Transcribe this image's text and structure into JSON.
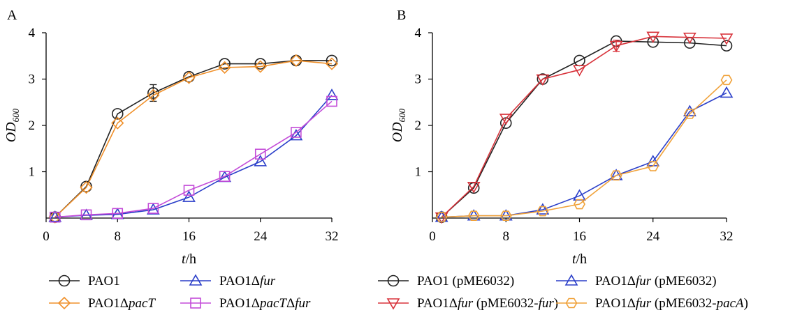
{
  "chart_data": [
    {
      "panel": "A",
      "type": "line",
      "xlabel_italic": "t",
      "xlabel_unit": "/h",
      "ylabel_main": "OD",
      "ylabel_sub": "600",
      "xticks": [
        "0",
        "8",
        "16",
        "24",
        "32"
      ],
      "yticks": [
        "1",
        "2",
        "3",
        "4"
      ],
      "xlim": [
        0,
        32
      ],
      "ylim": [
        0,
        4
      ],
      "grid": false,
      "legend_position": "bottom",
      "x": [
        1,
        4.5,
        8,
        12,
        16,
        20,
        24,
        28,
        32
      ],
      "series": [
        {
          "name_parts": [
            {
              "t": "PAO1",
              "i": false
            }
          ],
          "color": "#222222",
          "marker": "circle",
          "values": [
            0.02,
            0.68,
            2.25,
            2.7,
            3.05,
            3.33,
            3.33,
            3.4,
            3.4
          ],
          "error": [
            0,
            0,
            0,
            0.18,
            0,
            0,
            0,
            0,
            0
          ]
        },
        {
          "name_parts": [
            {
              "t": "PAO1Δ",
              "i": false
            },
            {
              "t": "pacT",
              "i": true
            }
          ],
          "color": "#f0902a",
          "marker": "diamond",
          "values": [
            0.02,
            0.66,
            2.05,
            2.65,
            3.03,
            3.25,
            3.27,
            3.4,
            3.33
          ],
          "error": [
            0,
            0,
            0,
            0,
            0,
            0,
            0,
            0,
            0
          ]
        },
        {
          "name_parts": [
            {
              "t": "PAO1Δ",
              "i": false
            },
            {
              "t": "fur",
              "i": true
            }
          ],
          "color": "#2b3fc9",
          "marker": "triangle-up",
          "values": [
            0.02,
            0.06,
            0.08,
            0.18,
            0.45,
            0.88,
            1.22,
            1.78,
            2.65
          ],
          "error": [
            0,
            0,
            0,
            0,
            0,
            0,
            0,
            0,
            0
          ]
        },
        {
          "name_parts": [
            {
              "t": "PAO1Δ",
              "i": false
            },
            {
              "t": "pacT",
              "i": true
            },
            {
              "t": "Δ",
              "i": false
            },
            {
              "t": "fur",
              "i": true
            }
          ],
          "color": "#c34bd8",
          "marker": "square",
          "values": [
            0.02,
            0.07,
            0.1,
            0.21,
            0.6,
            0.9,
            1.38,
            1.85,
            2.52
          ],
          "error": [
            0,
            0,
            0,
            0,
            0,
            0,
            0,
            0,
            0
          ]
        }
      ]
    },
    {
      "panel": "B",
      "type": "line",
      "xlabel_italic": "t",
      "xlabel_unit": "/h",
      "ylabel_main": "OD",
      "ylabel_sub": "600",
      "xticks": [
        "0",
        "8",
        "16",
        "24",
        "32"
      ],
      "yticks": [
        "1",
        "2",
        "3",
        "4"
      ],
      "xlim": [
        0,
        32
      ],
      "ylim": [
        0,
        4
      ],
      "grid": false,
      "legend_position": "bottom",
      "x": [
        1,
        4.5,
        8,
        12,
        16,
        20,
        24,
        28,
        32
      ],
      "series": [
        {
          "name_parts": [
            {
              "t": "PAO1 (pME6032)",
              "i": false
            }
          ],
          "color": "#222222",
          "marker": "circle",
          "values": [
            0.02,
            0.65,
            2.05,
            3.0,
            3.4,
            3.82,
            3.8,
            3.78,
            3.72
          ],
          "error": [
            0,
            0,
            0,
            0,
            0,
            0,
            0,
            0,
            0
          ]
        },
        {
          "name_parts": [
            {
              "t": "PAO1Δ",
              "i": false
            },
            {
              "t": "fur",
              "i": true
            },
            {
              "t": " (pME6032-",
              "i": false
            },
            {
              "t": "fur",
              "i": true
            },
            {
              "t": ")",
              "i": false
            }
          ],
          "color": "#d8333b",
          "marker": "triangle-down",
          "values": [
            0.02,
            0.68,
            2.15,
            3.0,
            3.2,
            3.72,
            3.92,
            3.9,
            3.88
          ],
          "error": [
            0,
            0,
            0,
            0,
            0,
            0.12,
            0,
            0,
            0
          ]
        },
        {
          "name_parts": [
            {
              "t": "PAO1Δ",
              "i": false
            },
            {
              "t": "fur",
              "i": true
            },
            {
              "t": " (pME6032)",
              "i": false
            }
          ],
          "color": "#2b3fc9",
          "marker": "triangle-up",
          "values": [
            0.02,
            0.05,
            0.05,
            0.18,
            0.48,
            0.92,
            1.22,
            2.3,
            2.7
          ],
          "error": [
            0,
            0,
            0,
            0,
            0,
            0,
            0,
            0,
            0
          ]
        },
        {
          "name_parts": [
            {
              "t": "PAO1Δ",
              "i": false
            },
            {
              "t": "fur",
              "i": true
            },
            {
              "t": " (pME6032-",
              "i": false
            },
            {
              "t": "pacA",
              "i": true
            },
            {
              "t": ")",
              "i": false
            }
          ],
          "color": "#f0a23a",
          "marker": "hexagon",
          "values": [
            0.02,
            0.05,
            0.05,
            0.15,
            0.3,
            0.92,
            1.12,
            2.25,
            2.98
          ],
          "error": [
            0,
            0,
            0,
            0,
            0,
            0,
            0,
            0,
            0
          ]
        }
      ]
    }
  ]
}
